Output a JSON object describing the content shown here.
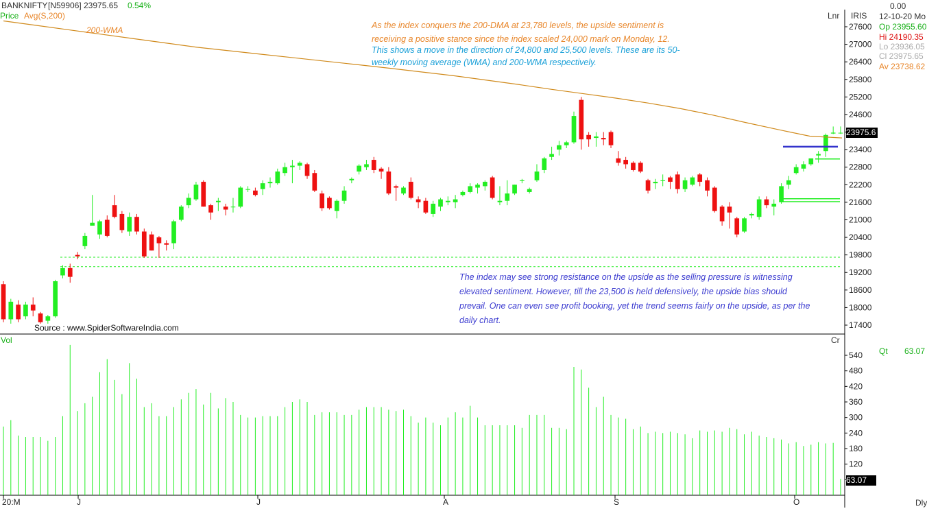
{
  "header": {
    "symbol": "BANKNIFTY",
    "code": "[N59906]",
    "price": "23975.65",
    "change": "0.54%",
    "price_label": "Price",
    "avg_label": "Avg(S,200)",
    "wma_label": "200-WMA",
    "scale_mode": "Lnr",
    "brand": "IRIS",
    "top_value": "0.00",
    "date": "12-10-20 Mo"
  },
  "ohlc": {
    "open": "Op 23955.60",
    "high": "Hi  24190.35",
    "low": "Lo  23936.05",
    "close": "Cl  23975.65",
    "avg": "Av 23738.62"
  },
  "price_tag": "23975.6",
  "volume_tag": "63.07",
  "volume_panel": {
    "label": "Vol",
    "corner": "Cr",
    "qt_label": "Qt",
    "qt_value": "63.07"
  },
  "source": "Source : www.SpiderSoftwareIndia.com",
  "period": "Dly",
  "annotations": {
    "top_line1": "As the index conquers the 200-DMA at 23,780 levels, the upside sentiment is",
    "top_line2": "receiving a positive stance since the index scaled 24,000 mark on Monday, 12.",
    "top_line3": "This shows a move in the direction of 24,800 and 25,500 levels. These are its 50-",
    "top_line4": "weekly moving average (WMA) and 200-WMA respectively.",
    "bottom_line1": "The index may see strong resistance on the upside as the selling pressure is witnessing",
    "bottom_line2": "elevated sentiment. However, till the 23,500 is held defensively, the upside bias should",
    "bottom_line3": "prevail. One can even see profit booking, yet the trend seems fairly on the upside, as per the",
    "bottom_line4": "daily chart."
  },
  "colors": {
    "up": "#22ee22",
    "down": "#ee1111",
    "wma": "#d08a1c",
    "support": "#3333cc",
    "green_text": "#18b018",
    "orange_text": "#e8862a",
    "blue_text": "#3b3bd0",
    "cyan_text": "#1aa0d8"
  },
  "chart_data": [
    {
      "type": "candlestick",
      "title": "BANKNIFTY [N59906] daily",
      "y_ticks": [
        27600,
        27000,
        26400,
        25800,
        25200,
        24600,
        24000,
        23400,
        22800,
        22200,
        21600,
        21000,
        20400,
        19800,
        19200,
        18600,
        18000,
        17400
      ],
      "x_ticks": [
        "20:M",
        "J",
        "J",
        "A",
        "S",
        "O"
      ],
      "ylim": [
        17200,
        27800
      ],
      "series": [
        {
          "name": "Price",
          "ohlc": [
            [
              18800,
              18900,
              17500,
              17600
            ],
            [
              17600,
              18300,
              17450,
              18200
            ],
            [
              18100,
              18250,
              17500,
              17600
            ],
            [
              17700,
              18200,
              17600,
              18100
            ],
            [
              18100,
              18350,
              17700,
              17900
            ],
            [
              17800,
              17850,
              17450,
              17500
            ],
            [
              17550,
              17750,
              17450,
              17700
            ],
            [
              17700,
              18950,
              17650,
              18900
            ],
            [
              19100,
              19450,
              19000,
              19350
            ],
            [
              19350,
              19500,
              18850,
              19050
            ],
            [
              19800,
              19900,
              19650,
              19750
            ],
            [
              20100,
              20550,
              20000,
              20450
            ],
            [
              20800,
              21850,
              20800,
              20900
            ],
            [
              20500,
              21000,
              20350,
              20950
            ],
            [
              21000,
              21150,
              20400,
              20450
            ],
            [
              21500,
              21850,
              21050,
              21100
            ],
            [
              21200,
              21300,
              20550,
              20650
            ],
            [
              20600,
              21250,
              20450,
              21100
            ],
            [
              21100,
              21200,
              20500,
              20600
            ],
            [
              20600,
              20700,
              19700,
              19750
            ],
            [
              20500,
              20600,
              19950,
              19950
            ],
            [
              20400,
              20450,
              19700,
              20200
            ],
            [
              20200,
              20300,
              19950,
              20150
            ],
            [
              20200,
              21000,
              20000,
              20950
            ],
            [
              21000,
              21500,
              20950,
              21450
            ],
            [
              21500,
              21900,
              21400,
              21750
            ],
            [
              21700,
              22300,
              21650,
              22200
            ],
            [
              22300,
              22350,
              21450,
              21450
            ],
            [
              21500,
              21550,
              21000,
              21250
            ],
            [
              21600,
              21750,
              21300,
              21650
            ],
            [
              21450,
              21550,
              21150,
              21350
            ],
            [
              21450,
              21750,
              21250,
              21450
            ],
            [
              21450,
              22150,
              21400,
              22100
            ],
            [
              22050,
              22150,
              21950,
              22050
            ],
            [
              22000,
              22100,
              21800,
              21850
            ],
            [
              22050,
              22350,
              21850,
              22250
            ],
            [
              22250,
              22450,
              22100,
              22300
            ],
            [
              22250,
              22750,
              22200,
              22650
            ],
            [
              22600,
              22950,
              22500,
              22800
            ],
            [
              22800,
              23050,
              22250,
              22850
            ],
            [
              22850,
              23000,
              22700,
              22950
            ],
            [
              22900,
              22950,
              22400,
              22500
            ],
            [
              22600,
              22700,
              21950,
              22000
            ],
            [
              21900,
              22000,
              21300,
              21400
            ],
            [
              21750,
              21800,
              21350,
              21400
            ],
            [
              21300,
              21700,
              21050,
              21650
            ],
            [
              21650,
              22150,
              21550,
              22000
            ],
            [
              22350,
              22450,
              22250,
              22400
            ],
            [
              22650,
              22900,
              22550,
              22850
            ],
            [
              22800,
              23050,
              22700,
              22900
            ],
            [
              23050,
              23150,
              22600,
              22700
            ],
            [
              22750,
              22800,
              22400,
              22650
            ],
            [
              22650,
              22800,
              21850,
              21900
            ],
            [
              22150,
              22200,
              21650,
              22100
            ],
            [
              21900,
              22150,
              21850,
              22100
            ],
            [
              22300,
              22450,
              21700,
              21750
            ],
            [
              21700,
              21800,
              21400,
              21600
            ],
            [
              21650,
              21750,
              21200,
              21250
            ],
            [
              21200,
              21650,
              21100,
              21550
            ],
            [
              21450,
              21750,
              21300,
              21700
            ],
            [
              21600,
              21800,
              21500,
              21650
            ],
            [
              21600,
              21850,
              21400,
              21700
            ],
            [
              21850,
              22000,
              21800,
              21950
            ],
            [
              21950,
              22250,
              21900,
              22150
            ],
            [
              22100,
              22250,
              21900,
              22200
            ],
            [
              22150,
              22350,
              22000,
              22300
            ],
            [
              22450,
              22500,
              21700,
              21750
            ],
            [
              21600,
              22150,
              21500,
              21650
            ],
            [
              21650,
              22350,
              21500,
              21900
            ],
            [
              21900,
              22200,
              21850,
              22200
            ],
            [
              22350,
              22400,
              22250,
              22350
            ],
            [
              21950,
              22100,
              21900,
              22050
            ],
            [
              22350,
              22900,
              22300,
              22650
            ],
            [
              22700,
              23150,
              22600,
              23100
            ],
            [
              23150,
              23500,
              23050,
              23250
            ],
            [
              23400,
              23700,
              23200,
              23550
            ],
            [
              23550,
              23700,
              23450,
              23650
            ],
            [
              23650,
              24700,
              23600,
              24550
            ],
            [
              25100,
              25200,
              23400,
              23750
            ],
            [
              23900,
              24000,
              23500,
              23750
            ],
            [
              23800,
              24000,
              23500,
              23850
            ],
            [
              23800,
              24000,
              23550,
              23750
            ],
            [
              24000,
              24050,
              23450,
              23550
            ],
            [
              23100,
              23350,
              22850,
              22950
            ],
            [
              23050,
              23150,
              22750,
              22900
            ],
            [
              22950,
              23000,
              22650,
              22700
            ],
            [
              22950,
              23000,
              22600,
              22650
            ],
            [
              22350,
              22400,
              21900,
              22000
            ],
            [
              22250,
              22400,
              22050,
              22300
            ],
            [
              22350,
              22550,
              22150,
              22350
            ],
            [
              22450,
              22500,
              22050,
              22300
            ],
            [
              22550,
              22650,
              21900,
              22050
            ],
            [
              22050,
              22450,
              21950,
              22350
            ],
            [
              22200,
              22500,
              22150,
              22450
            ],
            [
              22550,
              22600,
              22150,
              22300
            ],
            [
              22350,
              22450,
              21800,
              22000
            ],
            [
              22100,
              22150,
              21250,
              21300
            ],
            [
              21450,
              21500,
              20800,
              20950
            ],
            [
              21450,
              21600,
              20700,
              21250
            ],
            [
              21050,
              21100,
              20400,
              20500
            ],
            [
              20600,
              21100,
              20550,
              21050
            ],
            [
              21150,
              21250,
              21050,
              21200
            ],
            [
              21100,
              21800,
              21000,
              21700
            ],
            [
              21700,
              21800,
              21400,
              21500
            ],
            [
              21450,
              21700,
              21150,
              21550
            ],
            [
              21600,
              22250,
              21550,
              22150
            ],
            [
              22200,
              22500,
              22050,
              22350
            ],
            [
              22600,
              22900,
              22550,
              22800
            ],
            [
              22750,
              23000,
              22650,
              22900
            ],
            [
              22900,
              23100,
              22850,
              23100
            ],
            [
              23200,
              23350,
              22950,
              23250
            ],
            [
              23350,
              23950,
              23150,
              23900
            ],
            [
              23950,
              24190,
              23930,
              23980
            ],
            [
              23960,
              24190,
              23936,
              23976
            ]
          ]
        },
        {
          "name": "Avg(S,200)",
          "values": [
            27800,
            27650,
            27500,
            27350,
            27200,
            27050,
            26900,
            26780,
            26660,
            26540,
            26420,
            26300,
            26180,
            26050,
            25920,
            25770,
            25620,
            25460,
            25310,
            25160,
            24990,
            24800,
            24580,
            24330,
            24090,
            23860,
            23800
          ]
        }
      ],
      "levels": {
        "support_blue": 23500,
        "green_levels": [
          23080,
          21720,
          21620
        ],
        "dashed_levels": [
          19720,
          19400
        ]
      }
    },
    {
      "type": "bar",
      "title": "Vol",
      "y_ticks": [
        540,
        480,
        420,
        360,
        300,
        240,
        180,
        120,
        60
      ],
      "ylim": [
        0,
        600
      ],
      "values": [
        265,
        290,
        230,
        225,
        225,
        225,
        210,
        225,
        305,
        580,
        325,
        355,
        380,
        475,
        525,
        445,
        390,
        510,
        450,
        340,
        355,
        305,
        305,
        340,
        370,
        395,
        410,
        350,
        395,
        335,
        375,
        360,
        310,
        300,
        300,
        305,
        305,
        305,
        340,
        360,
        370,
        360,
        310,
        320,
        320,
        320,
        310,
        310,
        330,
        340,
        340,
        340,
        330,
        325,
        330,
        305,
        280,
        300,
        280,
        270,
        300,
        320,
        300,
        345,
        300,
        270,
        270,
        270,
        270,
        270,
        260,
        310,
        310,
        310,
        260,
        260,
        255,
        495,
        485,
        415,
        340,
        380,
        310,
        300,
        295,
        255,
        265,
        240,
        245,
        240,
        245,
        240,
        235,
        220,
        250,
        245,
        250,
        245,
        260,
        255,
        235,
        245,
        230,
        225,
        220,
        215,
        200,
        205,
        190,
        195,
        205,
        200,
        202,
        63
      ]
    }
  ]
}
